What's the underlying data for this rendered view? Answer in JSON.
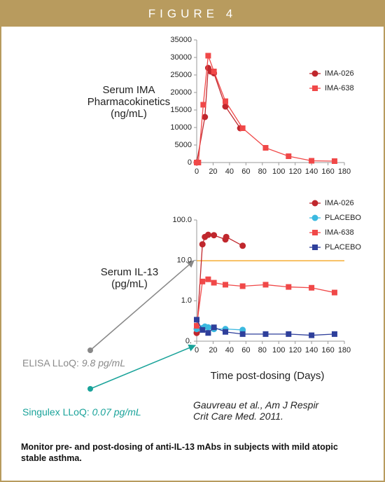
{
  "header": {
    "title": "FIGURE 4"
  },
  "chart_data": [
    {
      "type": "line",
      "ylabel": "Serum IMA Pharmacokinetics (ng/mL)",
      "xlim": [
        0,
        180
      ],
      "xticks": [
        0,
        20,
        40,
        60,
        80,
        100,
        120,
        140,
        160,
        180
      ],
      "ylim": [
        0,
        35000
      ],
      "yticks": [
        0,
        5000,
        10000,
        15000,
        20000,
        25000,
        30000,
        35000
      ],
      "legend": "right",
      "series": [
        {
          "name": "IMA-026",
          "color": "#c0272d",
          "marker": "circle",
          "x": [
            0,
            10,
            14,
            17,
            21,
            35,
            53
          ],
          "values": [
            0,
            13000,
            27000,
            26000,
            25500,
            16000,
            9800
          ]
        },
        {
          "name": "IMA-638",
          "color": "#f04848",
          "marker": "square",
          "x": [
            0,
            2,
            8,
            14,
            21,
            35,
            56,
            84,
            112,
            140,
            168
          ],
          "values": [
            0,
            0,
            16500,
            30500,
            26000,
            17500,
            9800,
            4200,
            1800,
            500,
            400
          ]
        }
      ]
    },
    {
      "type": "line",
      "ylabel": "Serum IL-13 (pg/mL)",
      "xlabel": "Time post-dosing (Days)",
      "xlim": [
        0,
        180
      ],
      "xticks": [
        0,
        20,
        40,
        60,
        80,
        100,
        120,
        140,
        160,
        180
      ],
      "yscale": "log",
      "ylim": [
        0.1,
        100
      ],
      "yticks": [
        {
          "value": 0.1,
          "label": "0."
        },
        {
          "value": 1,
          "label": "1.0"
        },
        {
          "value": 10,
          "label": "10.0"
        },
        {
          "value": 100,
          "label": "100.0"
        }
      ],
      "legend": "right",
      "reference_line": {
        "value": 9.8,
        "color": "#f5a623"
      },
      "series": [
        {
          "name": "IMA-026",
          "color": "#c0272d",
          "marker": "circle",
          "x": [
            0,
            7,
            10,
            14,
            21,
            35,
            36,
            56
          ],
          "values": [
            0.16,
            25,
            38,
            43,
            42,
            33,
            38,
            23
          ]
        },
        {
          "name": "PLACEBO",
          "color": "#3bb9e0",
          "marker": "circle",
          "x": [
            0,
            7,
            10,
            14,
            21,
            35,
            56
          ],
          "values": [
            0.2,
            0.21,
            0.23,
            0.22,
            0.2,
            0.2,
            0.19
          ]
        },
        {
          "name": "IMA-638",
          "color": "#f04848",
          "marker": "square",
          "x": [
            0,
            7,
            14,
            21,
            35,
            56,
            84,
            112,
            140,
            168
          ],
          "values": [
            0.24,
            3.0,
            3.4,
            2.8,
            2.5,
            2.3,
            2.5,
            2.2,
            2.1,
            1.6
          ]
        },
        {
          "name": "PLACEBO",
          "color": "#2e3f9b",
          "marker": "square",
          "x": [
            0,
            7,
            14,
            21,
            35,
            56,
            84,
            112,
            140,
            168
          ],
          "values": [
            0.34,
            0.19,
            0.16,
            0.22,
            0.17,
            0.15,
            0.15,
            0.15,
            0.14,
            0.15
          ]
        }
      ]
    }
  ],
  "annotations": {
    "elisa": {
      "label": "ELISA LLoQ:",
      "value": "9.8 pg/mL"
    },
    "singulex": {
      "label": "Singulex LLoQ:",
      "value": "0.07 pg/mL"
    }
  },
  "citation": "Gauvreau et al., Am J Respir Crit Care Med. 2011.",
  "caption": "Monitor pre- and post-dosing of anti-IL-13 mAbs in subjects with mild atopic stable asthma."
}
